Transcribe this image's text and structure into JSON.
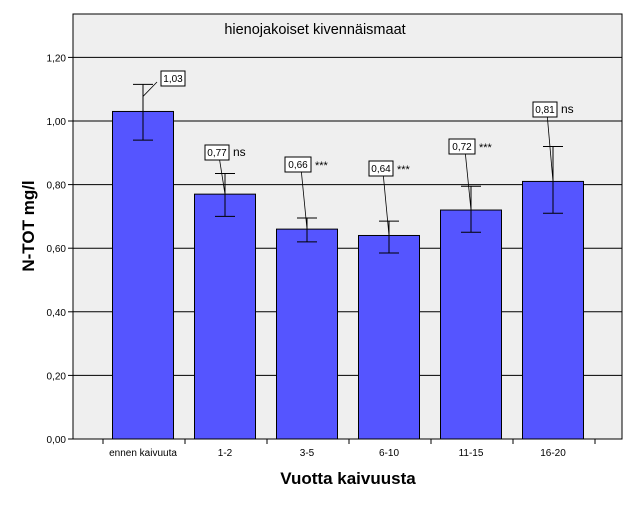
{
  "chart_data": {
    "type": "bar",
    "title": "hienojakoiset kivennäismaat",
    "xlabel": "Vuotta kaivuusta",
    "ylabel": "N-TOT mg/l",
    "ylim": [
      0,
      1.4
    ],
    "yticks": [
      "0,00",
      "0,20",
      "0,40",
      "0,60",
      "0,80",
      "1,00",
      "1,20"
    ],
    "grid": true,
    "categories": [
      "ennen kaivuuta",
      "1-2",
      "3-5",
      "6-10",
      "11-15",
      "16-20"
    ],
    "values": [
      1.03,
      0.77,
      0.66,
      0.64,
      0.72,
      0.81
    ],
    "error_low": [
      0.94,
      0.7,
      0.62,
      0.585,
      0.65,
      0.71
    ],
    "error_high": [
      1.115,
      0.835,
      0.695,
      0.685,
      0.795,
      0.92
    ],
    "data_labels": [
      "1,03",
      "0,77",
      "0,66",
      "0,64",
      "0,72",
      "0,81"
    ],
    "significance": [
      "",
      "ns",
      "***",
      "***",
      "***",
      "ns"
    ],
    "colors": {
      "bar": "#5555ff",
      "plot_bg": "#efefef",
      "grid": "#000000"
    }
  }
}
